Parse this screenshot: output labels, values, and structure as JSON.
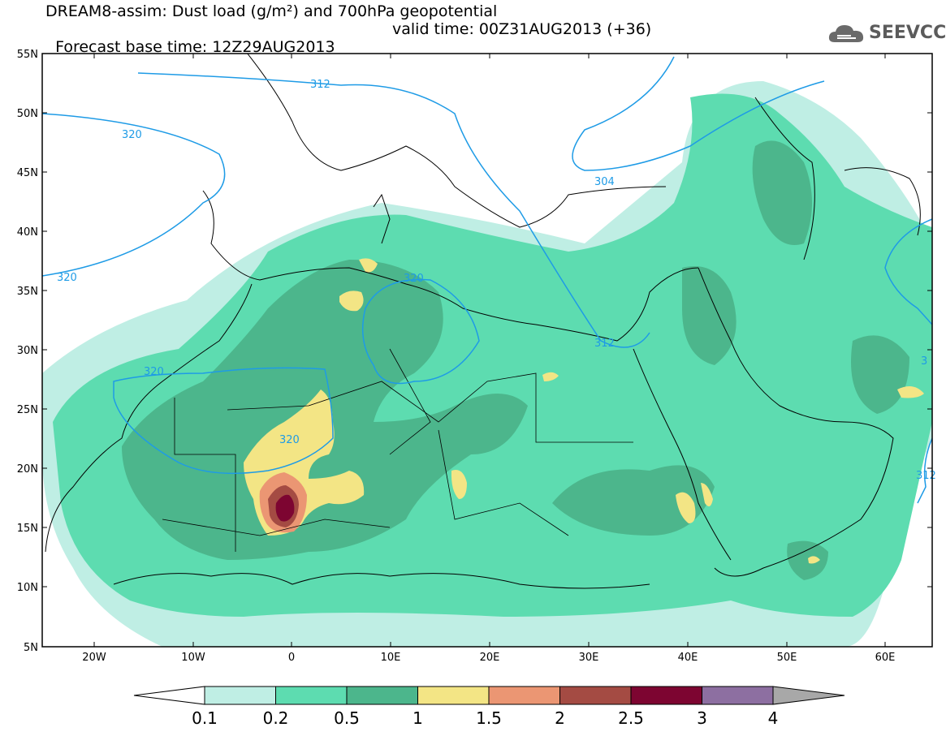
{
  "title_line1": "DREAM8-assim: Dust load (g/m²) and 700hPa geopotential",
  "title_line2": "Forecast base time: 12Z29AUG2013",
  "valid_time": "valid time: 00Z31AUG2013 (+36)",
  "logo_text": "SEEVCCC",
  "lat_labels": [
    "55N",
    "50N",
    "45N",
    "40N",
    "35N",
    "30N",
    "25N",
    "20N",
    "15N",
    "10N",
    "5N"
  ],
  "lon_labels": [
    "20W",
    "10W",
    "0",
    "10E",
    "20E",
    "30E",
    "40E",
    "50E",
    "60E"
  ],
  "contour_labels": [
    "312",
    "320",
    "320",
    "320",
    "320",
    "320",
    "312",
    "304",
    "312",
    "312",
    "3"
  ],
  "colorbar": {
    "colors": [
      "#bfeee4",
      "#5ddcb0",
      "#4cb68c",
      "#f3e585",
      "#eb9673",
      "#a44b43",
      "#7d0531",
      "#8d6fa1",
      "#a8a8a8"
    ],
    "labels": [
      "0.1",
      "0.2",
      "0.5",
      "1",
      "1.5",
      "2",
      "2.5",
      "3",
      "4"
    ]
  },
  "chart_data": {
    "type": "heatmap",
    "variable": "Dust load",
    "units": "g/m²",
    "overlay": "700hPa geopotential",
    "overlay_levels": [
      304,
      312,
      320
    ],
    "lat_range": [
      5,
      55
    ],
    "lon_range": [
      -25,
      65
    ],
    "levels": [
      0.1,
      0.2,
      0.5,
      1,
      1.5,
      2,
      2.5,
      3,
      4
    ],
    "max_region": {
      "lat": 17,
      "lon": 0,
      "value_class": "3"
    }
  }
}
